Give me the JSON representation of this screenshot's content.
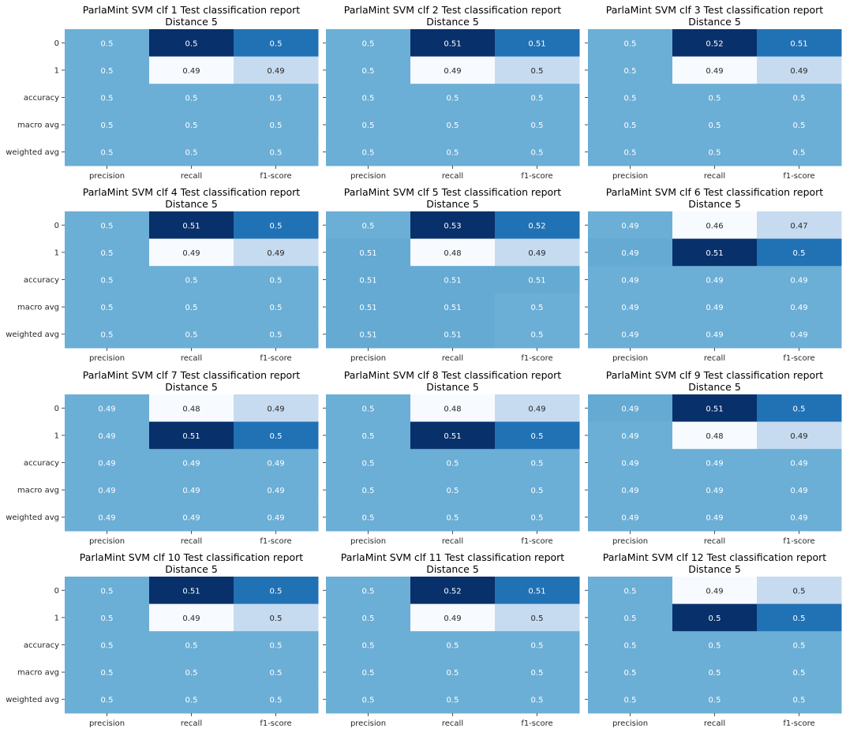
{
  "figure": {
    "colormap": "Blues",
    "cell_text_dark": "#262626",
    "cell_text_light": "#ffffff",
    "tick_color": "#262626"
  },
  "chart_data": [
    {
      "type": "heatmap",
      "title": "ParlaMint SVM clf 1 Test classification report",
      "subtitle": "Distance 5",
      "rows": [
        "0",
        "1",
        "accuracy",
        "macro avg",
        "weighted avg"
      ],
      "columns": [
        "precision",
        "recall",
        "f1-score"
      ],
      "values": [
        [
          0.5,
          0.5,
          0.5
        ],
        [
          0.5,
          0.49,
          0.49
        ],
        [
          0.5,
          0.5,
          0.5
        ],
        [
          0.5,
          0.5,
          0.5
        ],
        [
          0.5,
          0.5,
          0.5
        ]
      ],
      "labels": [
        [
          "0.5",
          "0.5",
          "0.5"
        ],
        [
          "0.5",
          "0.49",
          "0.49"
        ],
        [
          "0.5",
          "0.5",
          "0.5"
        ],
        [
          "0.5",
          "0.5",
          "0.5"
        ],
        [
          "0.5",
          "0.5",
          "0.5"
        ]
      ],
      "shades": [
        [
          0.5,
          1.0,
          0.75
        ],
        [
          0.5,
          0.0,
          0.25
        ],
        [
          0.5,
          0.5,
          0.5
        ],
        [
          0.5,
          0.5,
          0.5
        ],
        [
          0.5,
          0.5,
          0.5
        ]
      ]
    },
    {
      "type": "heatmap",
      "title": "ParlaMint SVM clf 2 Test classification report",
      "subtitle": "Distance 5",
      "rows": [
        "0",
        "1",
        "accuracy",
        "macro avg",
        "weighted avg"
      ],
      "columns": [
        "precision",
        "recall",
        "f1-score"
      ],
      "values": [
        [
          0.5,
          0.51,
          0.51
        ],
        [
          0.5,
          0.49,
          0.5
        ],
        [
          0.5,
          0.5,
          0.5
        ],
        [
          0.5,
          0.5,
          0.5
        ],
        [
          0.5,
          0.5,
          0.5
        ]
      ],
      "labels": [
        [
          "0.5",
          "0.51",
          "0.51"
        ],
        [
          "0.5",
          "0.49",
          "0.5"
        ],
        [
          "0.5",
          "0.5",
          "0.5"
        ],
        [
          "0.5",
          "0.5",
          "0.5"
        ],
        [
          "0.5",
          "0.5",
          "0.5"
        ]
      ],
      "shades": [
        [
          0.5,
          1.0,
          0.75
        ],
        [
          0.5,
          0.0,
          0.25
        ],
        [
          0.5,
          0.5,
          0.5
        ],
        [
          0.5,
          0.5,
          0.5
        ],
        [
          0.5,
          0.5,
          0.5
        ]
      ]
    },
    {
      "type": "heatmap",
      "title": "ParlaMint SVM clf 3 Test classification report",
      "subtitle": "Distance 5",
      "rows": [
        "0",
        "1",
        "accuracy",
        "macro avg",
        "weighted avg"
      ],
      "columns": [
        "precision",
        "recall",
        "f1-score"
      ],
      "values": [
        [
          0.5,
          0.52,
          0.51
        ],
        [
          0.5,
          0.49,
          0.49
        ],
        [
          0.5,
          0.5,
          0.5
        ],
        [
          0.5,
          0.5,
          0.5
        ],
        [
          0.5,
          0.5,
          0.5
        ]
      ],
      "labels": [
        [
          "0.5",
          "0.52",
          "0.51"
        ],
        [
          "0.5",
          "0.49",
          "0.49"
        ],
        [
          "0.5",
          "0.5",
          "0.5"
        ],
        [
          "0.5",
          "0.5",
          "0.5"
        ],
        [
          "0.5",
          "0.5",
          "0.5"
        ]
      ],
      "shades": [
        [
          0.5,
          1.0,
          0.75
        ],
        [
          0.5,
          0.0,
          0.25
        ],
        [
          0.5,
          0.5,
          0.5
        ],
        [
          0.5,
          0.5,
          0.5
        ],
        [
          0.5,
          0.5,
          0.5
        ]
      ]
    },
    {
      "type": "heatmap",
      "title": "ParlaMint SVM clf 4 Test classification report",
      "subtitle": "Distance 5",
      "rows": [
        "0",
        "1",
        "accuracy",
        "macro avg",
        "weighted avg"
      ],
      "columns": [
        "precision",
        "recall",
        "f1-score"
      ],
      "values": [
        [
          0.5,
          0.51,
          0.5
        ],
        [
          0.5,
          0.49,
          0.49
        ],
        [
          0.5,
          0.5,
          0.5
        ],
        [
          0.5,
          0.5,
          0.5
        ],
        [
          0.5,
          0.5,
          0.5
        ]
      ],
      "labels": [
        [
          "0.5",
          "0.51",
          "0.5"
        ],
        [
          "0.5",
          "0.49",
          "0.49"
        ],
        [
          "0.5",
          "0.5",
          "0.5"
        ],
        [
          "0.5",
          "0.5",
          "0.5"
        ],
        [
          "0.5",
          "0.5",
          "0.5"
        ]
      ],
      "shades": [
        [
          0.5,
          1.0,
          0.75
        ],
        [
          0.5,
          0.0,
          0.25
        ],
        [
          0.5,
          0.5,
          0.5
        ],
        [
          0.5,
          0.5,
          0.5
        ],
        [
          0.5,
          0.5,
          0.5
        ]
      ]
    },
    {
      "type": "heatmap",
      "title": "ParlaMint SVM clf 5 Test classification report",
      "subtitle": "Distance 5",
      "rows": [
        "0",
        "1",
        "accuracy",
        "macro avg",
        "weighted avg"
      ],
      "columns": [
        "precision",
        "recall",
        "f1-score"
      ],
      "values": [
        [
          0.5,
          0.53,
          0.52
        ],
        [
          0.51,
          0.48,
          0.49
        ],
        [
          0.51,
          0.51,
          0.51
        ],
        [
          0.51,
          0.51,
          0.5
        ],
        [
          0.51,
          0.51,
          0.5
        ]
      ],
      "labels": [
        [
          "0.5",
          "0.53",
          "0.52"
        ],
        [
          "0.51",
          "0.48",
          "0.49"
        ],
        [
          "0.51",
          "0.51",
          "0.51"
        ],
        [
          "0.51",
          "0.51",
          "0.5"
        ],
        [
          "0.51",
          "0.51",
          "0.5"
        ]
      ],
      "shades": [
        [
          0.5,
          1.0,
          0.75
        ],
        [
          0.52,
          0.0,
          0.25
        ],
        [
          0.52,
          0.52,
          0.52
        ],
        [
          0.52,
          0.52,
          0.5
        ],
        [
          0.52,
          0.52,
          0.5
        ]
      ]
    },
    {
      "type": "heatmap",
      "title": "ParlaMint SVM clf 6 Test classification report",
      "subtitle": "Distance 5",
      "rows": [
        "0",
        "1",
        "accuracy",
        "macro avg",
        "weighted avg"
      ],
      "columns": [
        "precision",
        "recall",
        "f1-score"
      ],
      "values": [
        [
          0.49,
          0.46,
          0.47
        ],
        [
          0.49,
          0.51,
          0.5
        ],
        [
          0.49,
          0.49,
          0.49
        ],
        [
          0.49,
          0.49,
          0.49
        ],
        [
          0.49,
          0.49,
          0.49
        ]
      ],
      "labels": [
        [
          "0.49",
          "0.46",
          "0.47"
        ],
        [
          "0.49",
          "0.51",
          "0.5"
        ],
        [
          "0.49",
          "0.49",
          "0.49"
        ],
        [
          "0.49",
          "0.49",
          "0.49"
        ],
        [
          "0.49",
          "0.49",
          "0.49"
        ]
      ],
      "shades": [
        [
          0.5,
          0.0,
          0.25
        ],
        [
          0.52,
          1.0,
          0.75
        ],
        [
          0.5,
          0.5,
          0.5
        ],
        [
          0.5,
          0.5,
          0.5
        ],
        [
          0.5,
          0.5,
          0.5
        ]
      ]
    },
    {
      "type": "heatmap",
      "title": "ParlaMint SVM clf 7 Test classification report",
      "subtitle": "Distance 5",
      "rows": [
        "0",
        "1",
        "accuracy",
        "macro avg",
        "weighted avg"
      ],
      "columns": [
        "precision",
        "recall",
        "f1-score"
      ],
      "values": [
        [
          0.49,
          0.48,
          0.49
        ],
        [
          0.49,
          0.51,
          0.5
        ],
        [
          0.49,
          0.49,
          0.49
        ],
        [
          0.49,
          0.49,
          0.49
        ],
        [
          0.49,
          0.49,
          0.49
        ]
      ],
      "labels": [
        [
          "0.49",
          "0.48",
          "0.49"
        ],
        [
          "0.49",
          "0.51",
          "0.5"
        ],
        [
          "0.49",
          "0.49",
          "0.49"
        ],
        [
          "0.49",
          "0.49",
          "0.49"
        ],
        [
          "0.49",
          "0.49",
          "0.49"
        ]
      ],
      "shades": [
        [
          0.5,
          0.0,
          0.25
        ],
        [
          0.5,
          1.0,
          0.75
        ],
        [
          0.5,
          0.5,
          0.5
        ],
        [
          0.5,
          0.5,
          0.5
        ],
        [
          0.5,
          0.5,
          0.5
        ]
      ]
    },
    {
      "type": "heatmap",
      "title": "ParlaMint SVM clf 8 Test classification report",
      "subtitle": "Distance 5",
      "rows": [
        "0",
        "1",
        "accuracy",
        "macro avg",
        "weighted avg"
      ],
      "columns": [
        "precision",
        "recall",
        "f1-score"
      ],
      "values": [
        [
          0.5,
          0.48,
          0.49
        ],
        [
          0.5,
          0.51,
          0.5
        ],
        [
          0.5,
          0.5,
          0.5
        ],
        [
          0.5,
          0.5,
          0.5
        ],
        [
          0.5,
          0.5,
          0.5
        ]
      ],
      "labels": [
        [
          "0.5",
          "0.48",
          "0.49"
        ],
        [
          "0.5",
          "0.51",
          "0.5"
        ],
        [
          "0.5",
          "0.5",
          "0.5"
        ],
        [
          "0.5",
          "0.5",
          "0.5"
        ],
        [
          "0.5",
          "0.5",
          "0.5"
        ]
      ],
      "shades": [
        [
          0.5,
          0.0,
          0.25
        ],
        [
          0.5,
          1.0,
          0.75
        ],
        [
          0.5,
          0.5,
          0.5
        ],
        [
          0.5,
          0.5,
          0.5
        ],
        [
          0.5,
          0.5,
          0.5
        ]
      ]
    },
    {
      "type": "heatmap",
      "title": "ParlaMint SVM clf 9 Test classification report",
      "subtitle": "Distance 5",
      "rows": [
        "0",
        "1",
        "accuracy",
        "macro avg",
        "weighted avg"
      ],
      "columns": [
        "precision",
        "recall",
        "f1-score"
      ],
      "values": [
        [
          0.49,
          0.51,
          0.5
        ],
        [
          0.49,
          0.48,
          0.49
        ],
        [
          0.49,
          0.49,
          0.49
        ],
        [
          0.49,
          0.49,
          0.49
        ],
        [
          0.49,
          0.49,
          0.49
        ]
      ],
      "labels": [
        [
          "0.49",
          "0.51",
          "0.5"
        ],
        [
          "0.49",
          "0.48",
          "0.49"
        ],
        [
          "0.49",
          "0.49",
          "0.49"
        ],
        [
          "0.49",
          "0.49",
          "0.49"
        ],
        [
          "0.49",
          "0.49",
          "0.49"
        ]
      ],
      "shades": [
        [
          0.52,
          1.0,
          0.75
        ],
        [
          0.5,
          0.0,
          0.25
        ],
        [
          0.5,
          0.5,
          0.5
        ],
        [
          0.5,
          0.5,
          0.5
        ],
        [
          0.5,
          0.5,
          0.5
        ]
      ]
    },
    {
      "type": "heatmap",
      "title": "ParlaMint SVM clf 10 Test classification report",
      "subtitle": "Distance 5",
      "rows": [
        "0",
        "1",
        "accuracy",
        "macro avg",
        "weighted avg"
      ],
      "columns": [
        "precision",
        "recall",
        "f1-score"
      ],
      "values": [
        [
          0.5,
          0.51,
          0.5
        ],
        [
          0.5,
          0.49,
          0.5
        ],
        [
          0.5,
          0.5,
          0.5
        ],
        [
          0.5,
          0.5,
          0.5
        ],
        [
          0.5,
          0.5,
          0.5
        ]
      ],
      "labels": [
        [
          "0.5",
          "0.51",
          "0.5"
        ],
        [
          "0.5",
          "0.49",
          "0.5"
        ],
        [
          "0.5",
          "0.5",
          "0.5"
        ],
        [
          "0.5",
          "0.5",
          "0.5"
        ],
        [
          "0.5",
          "0.5",
          "0.5"
        ]
      ],
      "shades": [
        [
          0.5,
          1.0,
          0.75
        ],
        [
          0.5,
          0.0,
          0.25
        ],
        [
          0.5,
          0.5,
          0.5
        ],
        [
          0.5,
          0.5,
          0.5
        ],
        [
          0.5,
          0.5,
          0.5
        ]
      ]
    },
    {
      "type": "heatmap",
      "title": "ParlaMint SVM clf 11 Test classification report",
      "subtitle": "Distance 5",
      "rows": [
        "0",
        "1",
        "accuracy",
        "macro avg",
        "weighted avg"
      ],
      "columns": [
        "precision",
        "recall",
        "f1-score"
      ],
      "values": [
        [
          0.5,
          0.52,
          0.51
        ],
        [
          0.5,
          0.49,
          0.5
        ],
        [
          0.5,
          0.5,
          0.5
        ],
        [
          0.5,
          0.5,
          0.5
        ],
        [
          0.5,
          0.5,
          0.5
        ]
      ],
      "labels": [
        [
          "0.5",
          "0.52",
          "0.51"
        ],
        [
          "0.5",
          "0.49",
          "0.5"
        ],
        [
          "0.5",
          "0.5",
          "0.5"
        ],
        [
          "0.5",
          "0.5",
          "0.5"
        ],
        [
          "0.5",
          "0.5",
          "0.5"
        ]
      ],
      "shades": [
        [
          0.5,
          1.0,
          0.75
        ],
        [
          0.5,
          0.0,
          0.25
        ],
        [
          0.5,
          0.5,
          0.5
        ],
        [
          0.5,
          0.5,
          0.5
        ],
        [
          0.5,
          0.5,
          0.5
        ]
      ]
    },
    {
      "type": "heatmap",
      "title": "ParlaMint SVM clf 12 Test classification report",
      "subtitle": "Distance 5",
      "rows": [
        "0",
        "1",
        "accuracy",
        "macro avg",
        "weighted avg"
      ],
      "columns": [
        "precision",
        "recall",
        "f1-score"
      ],
      "values": [
        [
          0.5,
          0.49,
          0.5
        ],
        [
          0.5,
          0.5,
          0.5
        ],
        [
          0.5,
          0.5,
          0.5
        ],
        [
          0.5,
          0.5,
          0.5
        ],
        [
          0.5,
          0.5,
          0.5
        ]
      ],
      "labels": [
        [
          "0.5",
          "0.49",
          "0.5"
        ],
        [
          "0.5",
          "0.5",
          "0.5"
        ],
        [
          "0.5",
          "0.5",
          "0.5"
        ],
        [
          "0.5",
          "0.5",
          "0.5"
        ],
        [
          "0.5",
          "0.5",
          "0.5"
        ]
      ],
      "shades": [
        [
          0.5,
          0.0,
          0.25
        ],
        [
          0.5,
          1.0,
          0.75
        ],
        [
          0.5,
          0.5,
          0.5
        ],
        [
          0.5,
          0.5,
          0.5
        ],
        [
          0.5,
          0.5,
          0.5
        ]
      ]
    }
  ]
}
